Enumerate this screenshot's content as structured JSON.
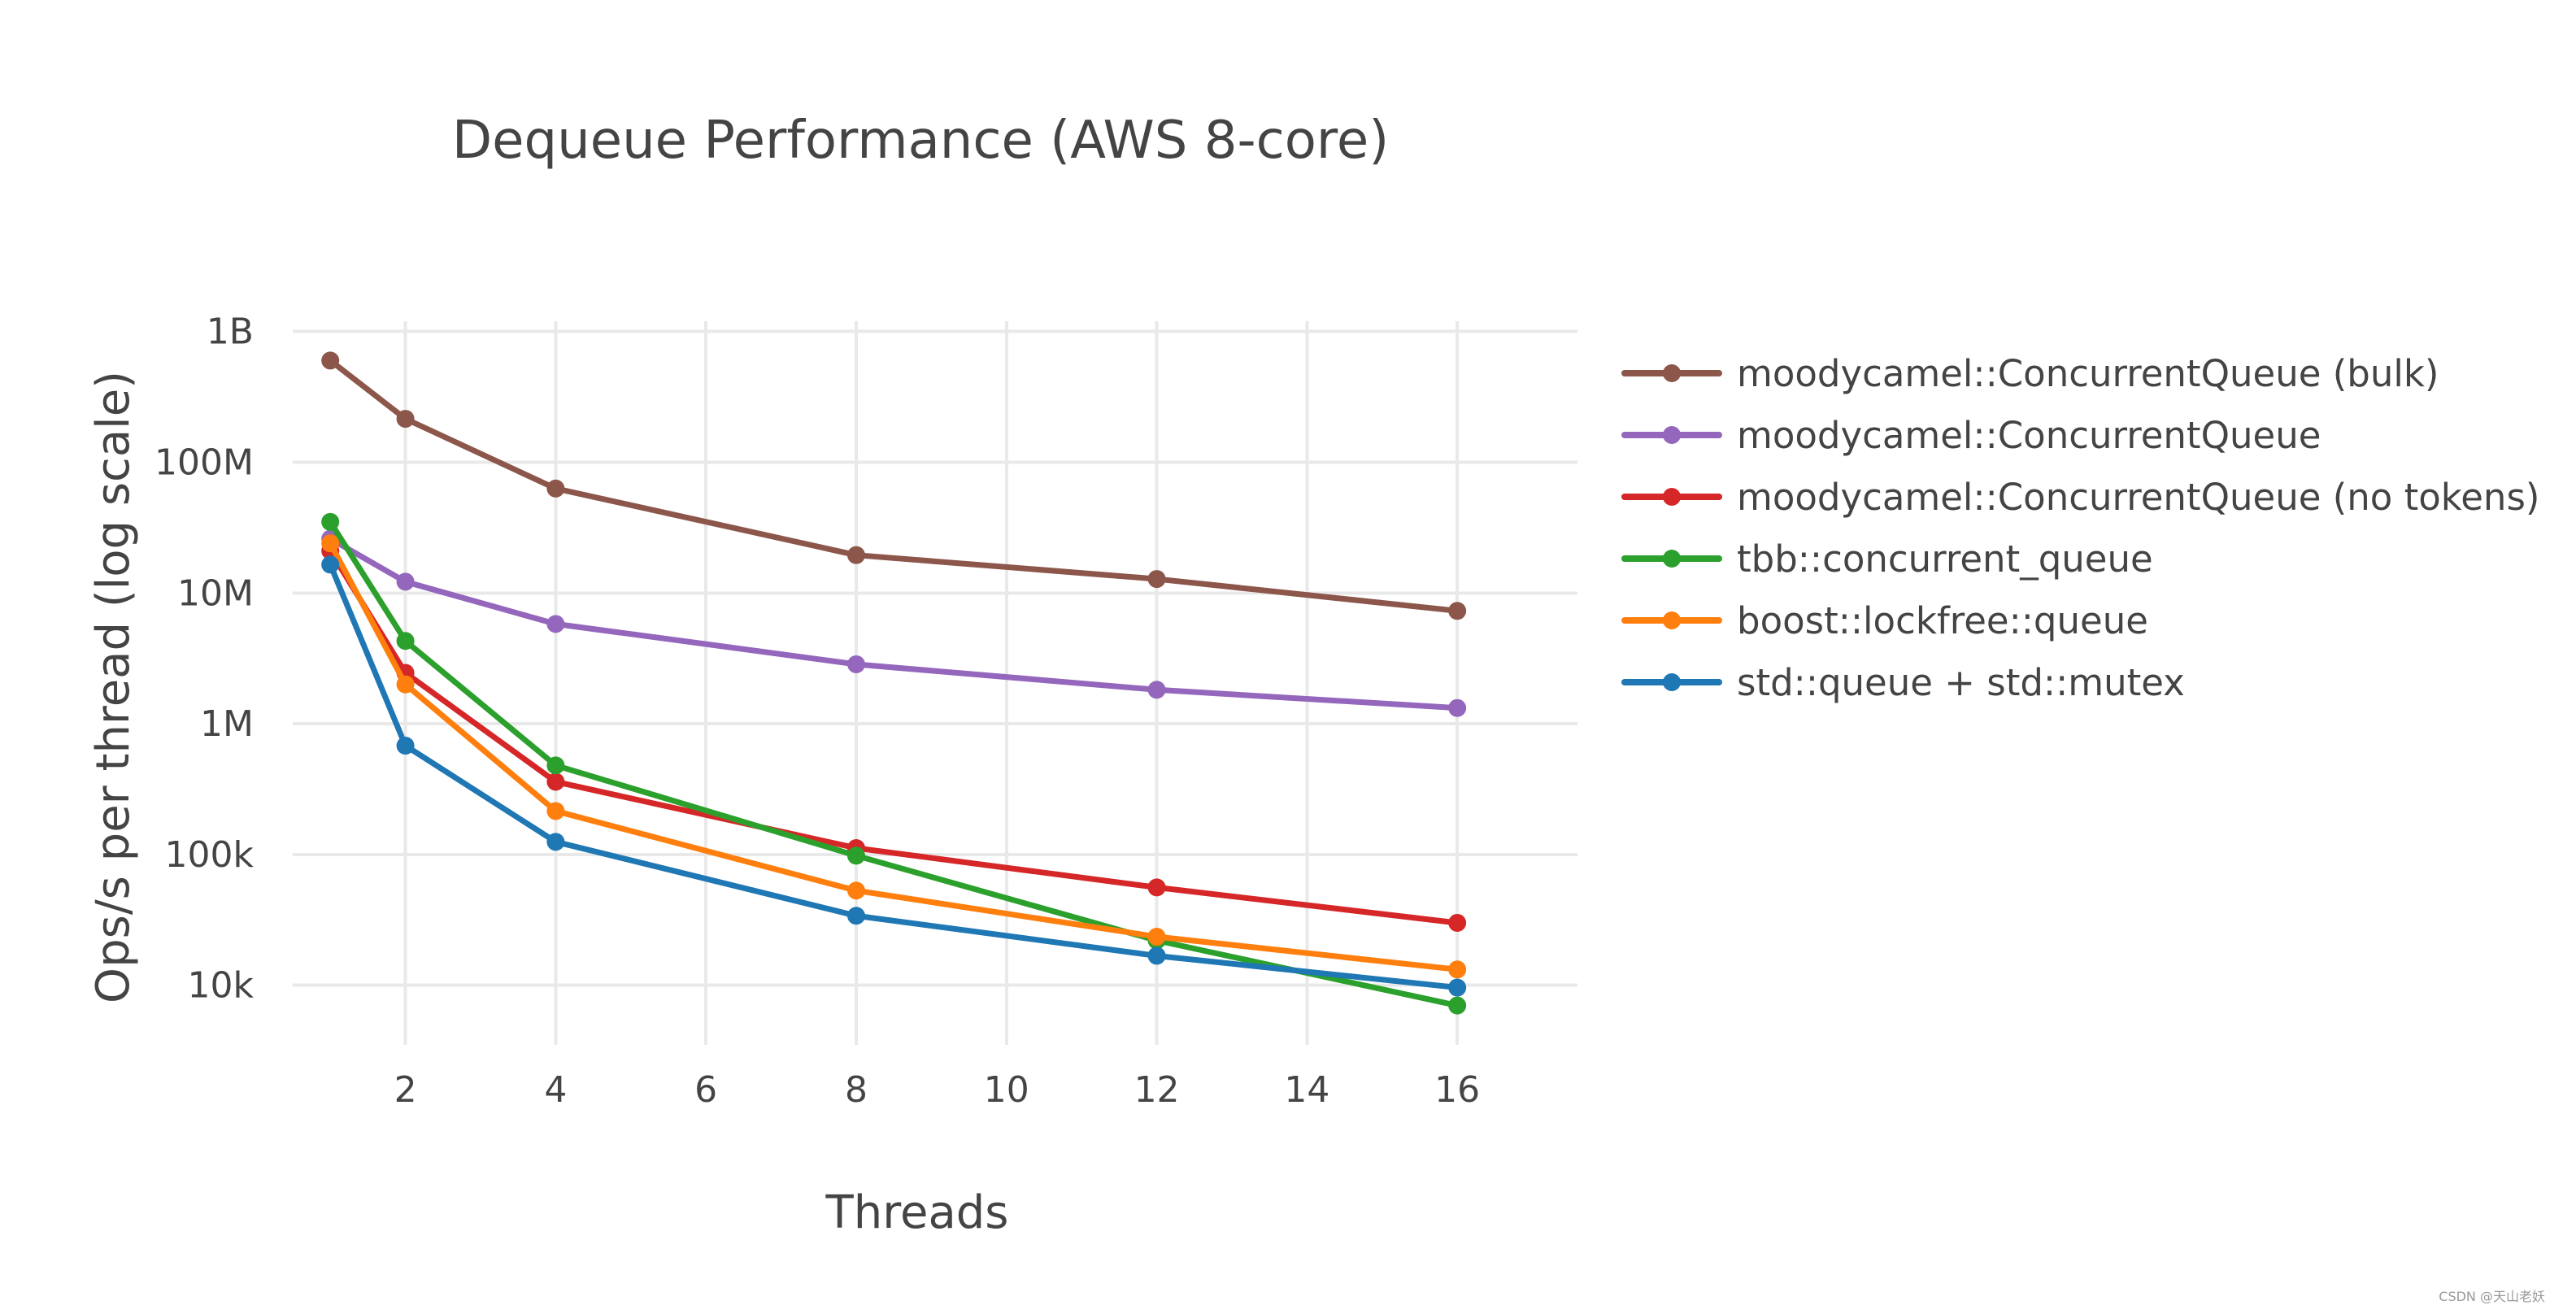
{
  "chart_data": {
    "type": "line",
    "title": "Dequeue Performance (AWS 8-core)",
    "xlabel": "Threads",
    "ylabel": "Ops/s per thread (log scale)",
    "x_scale": "linear",
    "y_scale": "log",
    "xlim": [
      0.5,
      17.6
    ],
    "ylim": [
      3500,
      1200000000
    ],
    "x_ticks": [
      2,
      4,
      6,
      8,
      10,
      12,
      14,
      16
    ],
    "x_tick_labels": [
      "2",
      "4",
      "6",
      "8",
      "10",
      "12",
      "14",
      "16"
    ],
    "y_ticks": [
      10000,
      100000,
      1000000,
      10000000,
      100000000,
      1000000000
    ],
    "y_tick_labels": [
      "10k",
      "100k",
      "1M",
      "10M",
      "100M",
      "1B"
    ],
    "grid": true,
    "legend_position": "right",
    "x": [
      1,
      2,
      4,
      8,
      12,
      16
    ],
    "series": [
      {
        "name": "moodycamel::ConcurrentQueue (bulk)",
        "color": "#8c564b",
        "values": [
          600000000,
          215000000,
          63000000,
          19500000,
          12800000,
          7300000
        ]
      },
      {
        "name": "moodycamel::ConcurrentQueue",
        "color": "#9467bd",
        "values": [
          26000000,
          12200000,
          5800000,
          2850000,
          1820000,
          1320000
        ]
      },
      {
        "name": "moodycamel::ConcurrentQueue (no tokens)",
        "color": "#d62728",
        "values": [
          21000000,
          2450000,
          360000,
          112000,
          56000,
          30000
        ]
      },
      {
        "name": "tbb::concurrent_queue",
        "color": "#2ca02c",
        "values": [
          35000000,
          4300000,
          480000,
          98000,
          22000,
          7000
        ]
      },
      {
        "name": "boost::lockfree::queue",
        "color": "#ff7f0e",
        "values": [
          24000000,
          2000000,
          215000,
          53000,
          23500,
          13200
        ]
      },
      {
        "name": "std::queue + std::mutex",
        "color": "#1f77b4",
        "values": [
          16500000,
          680000,
          125000,
          34000,
          16800,
          9600
        ]
      }
    ]
  },
  "watermark": "CSDN @天山老妖"
}
